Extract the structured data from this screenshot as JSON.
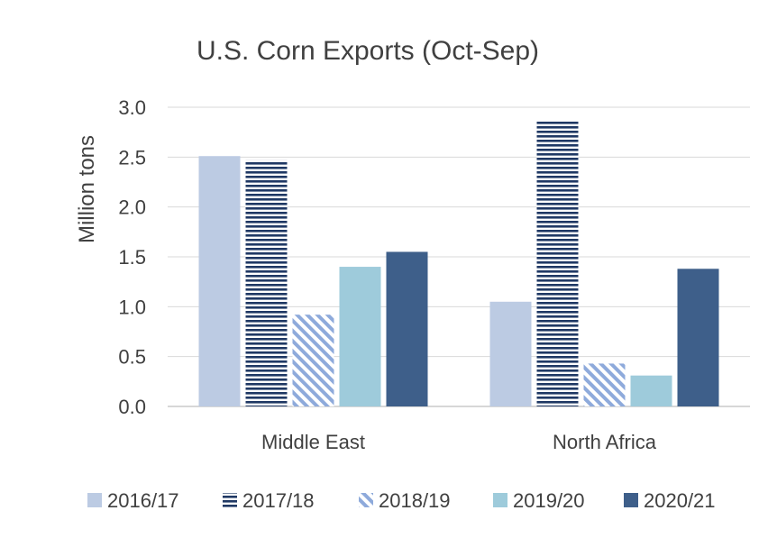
{
  "chart_data": {
    "type": "bar",
    "title": "U.S. Corn Exports (Oct-Sep)",
    "xlabel": "",
    "ylabel": "Million tons",
    "ylim": [
      0,
      3.0
    ],
    "yticks": [
      "0.0",
      "0.5",
      "1.0",
      "1.5",
      "2.0",
      "2.5",
      "3.0"
    ],
    "categories": [
      "Middle East",
      "North Africa"
    ],
    "series": [
      {
        "name": "2016/17",
        "values": [
          2.51,
          1.05
        ],
        "color": "#bccbe3",
        "pattern": "solid"
      },
      {
        "name": "2017/18",
        "values": [
          2.47,
          2.87
        ],
        "color": "#1f3864",
        "pattern": "horizontal-stripes"
      },
      {
        "name": "2018/19",
        "values": [
          0.92,
          0.43
        ],
        "color": "#8eaadb",
        "pattern": "diagonal-stripes"
      },
      {
        "name": "2019/20",
        "values": [
          1.4,
          0.31
        ],
        "color": "#9ecbdb",
        "pattern": "solid"
      },
      {
        "name": "2020/21",
        "values": [
          1.55,
          1.38
        ],
        "color": "#3e5f8a",
        "pattern": "solid"
      }
    ],
    "grid": true,
    "legend_position": "bottom"
  }
}
